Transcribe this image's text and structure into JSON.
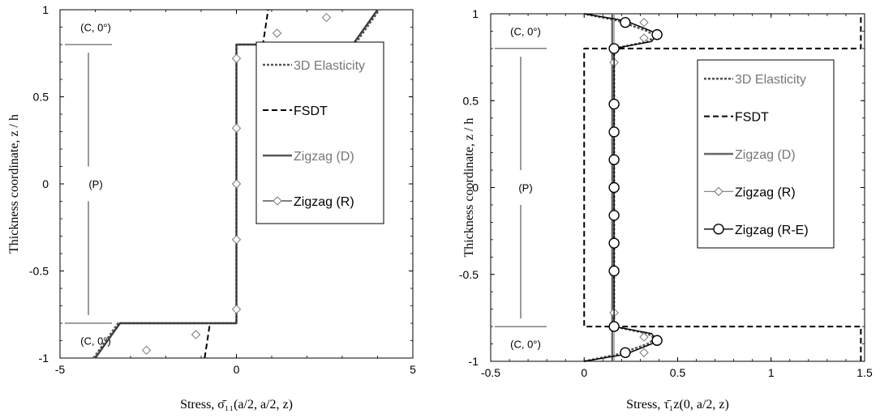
{
  "chart_data": [
    {
      "type": "line",
      "xlabel": "Stress, σ̄₁₁(a/2, a/2, z)",
      "ylabel": "Thickness coordinate, z / h",
      "xlim": [
        -5,
        5
      ],
      "ylim": [
        -1,
        1
      ],
      "xticks": [
        "-5",
        "0",
        "5"
      ],
      "yticks": [
        "-1",
        "-0.5",
        "0",
        "0.5",
        "1"
      ],
      "grid": false,
      "legend_position": "right-center",
      "layers": [
        {
          "label": "(C, 0°)",
          "z": 0.9
        },
        {
          "label": "(P)",
          "z": 0.0
        },
        {
          "label": "(C, 0°)",
          "z": -0.9
        }
      ],
      "series": [
        {
          "name": "3D Elasticity",
          "style": "dotted",
          "color": "#555555",
          "x": [
            -4.05,
            -3.35,
            0.0,
            0.0,
            3.35,
            4.05
          ],
          "y": [
            -1.0,
            -0.8,
            -0.8,
            0.8,
            0.8,
            1.0
          ]
        },
        {
          "name": "FSDT",
          "style": "dashed",
          "color": "#000000",
          "x": [
            -0.9,
            -0.75,
            0.0,
            0.0,
            0.75,
            0.9
          ],
          "y": [
            -1.0,
            -0.8,
            -0.8,
            0.8,
            0.8,
            1.0
          ]
        },
        {
          "name": "Zigzag (D)",
          "style": "solid",
          "color": "#555555",
          "x": [
            -4.0,
            -3.3,
            0.0,
            0.0,
            3.3,
            4.0
          ],
          "y": [
            -1.0,
            -0.8,
            -0.8,
            0.8,
            0.8,
            1.0
          ]
        },
        {
          "name": "Zigzag (R)",
          "style": "solid",
          "marker": "diamond",
          "color": "#333333",
          "x": [
            -4.0,
            -3.3,
            0.0,
            0.0,
            3.3,
            4.0
          ],
          "y": [
            -1.0,
            -0.8,
            -0.8,
            0.8,
            0.8,
            1.0
          ],
          "marker_x": [
            -2.55,
            -1.15,
            1.15,
            2.55,
            0,
            0,
            0,
            0,
            0
          ],
          "marker_y": [
            -0.955,
            -0.865,
            0.865,
            0.955,
            -0.72,
            -0.32,
            0.0,
            0.32,
            0.72
          ]
        }
      ]
    },
    {
      "type": "line",
      "xlabel": "Stress, τ̄₁z(0, a/2, z)",
      "ylabel": "Thickness coordinate, z / h",
      "xlim": [
        -0.5,
        1.5
      ],
      "ylim": [
        -1,
        1
      ],
      "xticks": [
        "-0.5",
        "0",
        "0.5",
        "1",
        "1.5"
      ],
      "yticks": [
        "-1",
        "-0.5",
        "0",
        "0.5",
        "1"
      ],
      "grid": false,
      "legend_position": "right-center",
      "layers": [
        {
          "label": "(C, 0°)",
          "z": 0.9
        },
        {
          "label": "(P)",
          "z": 0.0
        },
        {
          "label": "(C, 0°)",
          "z": -0.9
        }
      ],
      "series": [
        {
          "name": "3D Elasticity",
          "style": "dotted",
          "color": "#555555",
          "x": [
            0.0,
            0.18,
            0.34,
            0.38,
            0.34,
            0.16,
            0.16,
            0.34,
            0.38,
            0.34,
            0.18,
            0.0
          ],
          "y": [
            -1.0,
            -0.96,
            -0.9,
            -0.87,
            -0.84,
            -0.8,
            0.8,
            0.84,
            0.87,
            0.9,
            0.96,
            1.0
          ]
        },
        {
          "name": "FSDT",
          "style": "dashed",
          "color": "#000000",
          "x": [
            1.48,
            1.48,
            0.0,
            0.0,
            1.48,
            1.48
          ],
          "y": [
            -1.0,
            -0.8,
            -0.8,
            0.8,
            0.8,
            1.0
          ]
        },
        {
          "name": "Zigzag (D)",
          "style": "solid",
          "color": "#666666",
          "x": [
            0.15,
            0.15
          ],
          "y": [
            -1.0,
            1.0
          ]
        },
        {
          "name": "Zigzag (R)",
          "style": "solid",
          "marker": "diamond",
          "color": "#888888",
          "x": [
            0.16,
            0.16
          ],
          "y": [
            -1.0,
            1.0
          ],
          "marker_x": [
            0.16,
            0.16,
            0.16,
            0.16,
            0.16,
            0.32,
            0.32,
            0.32,
            0.32
          ],
          "marker_y": [
            -0.72,
            -0.32,
            0.0,
            0.32,
            0.72,
            0.86,
            -0.86,
            0.95,
            -0.95
          ]
        },
        {
          "name": "Zigzag (R-E)",
          "style": "solid",
          "marker": "circle",
          "color": "#000000",
          "x": [
            0.0,
            0.22,
            0.36,
            0.39,
            0.36,
            0.16,
            0.16,
            0.36,
            0.39,
            0.36,
            0.22,
            0.0
          ],
          "y": [
            -1.0,
            -0.96,
            -0.9,
            -0.88,
            -0.84,
            -0.8,
            0.8,
            0.84,
            0.88,
            0.9,
            0.96,
            1.0
          ],
          "marker_x": [
            0.22,
            0.39,
            0.16,
            0.16,
            0.16,
            0.16,
            0.16,
            0.16,
            0.16,
            0.16,
            0.16,
            0.39,
            0.22
          ],
          "marker_y": [
            -0.95,
            -0.88,
            -0.8,
            -0.48,
            -0.32,
            -0.16,
            0.0,
            0.16,
            0.32,
            0.48,
            0.8,
            0.88,
            0.95
          ]
        }
      ]
    }
  ]
}
